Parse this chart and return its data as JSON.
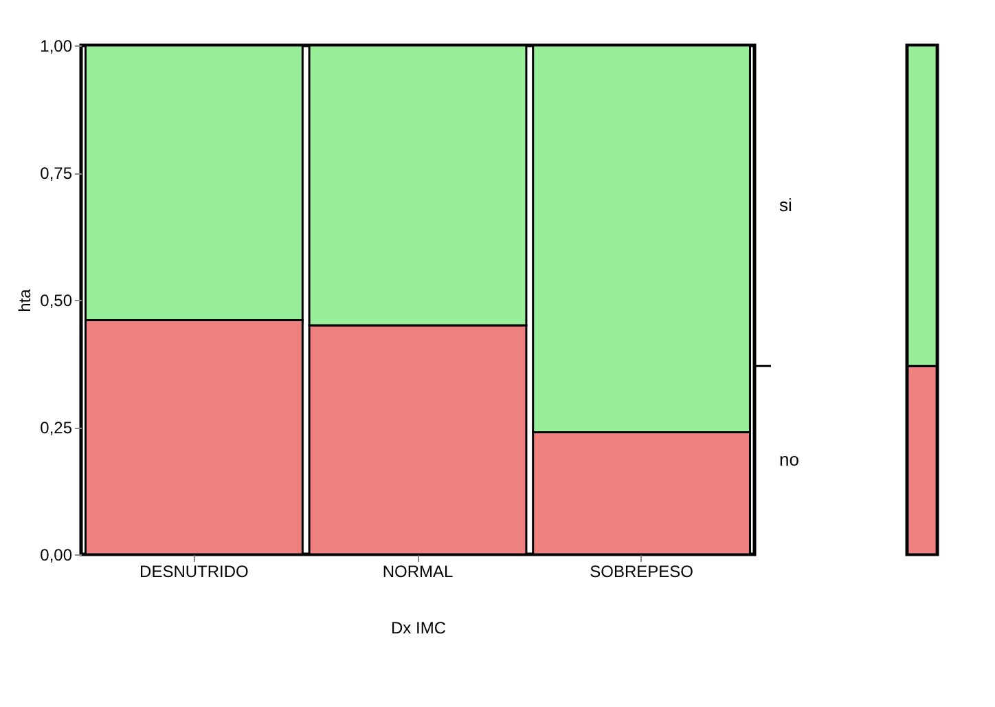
{
  "chart_data": [
    {
      "type": "bar",
      "stacked": true,
      "xlabel": "Dx IMC",
      "ylabel": "hta",
      "categories": [
        "DESNUTRIDO",
        "NORMAL",
        "SOBREPESO"
      ],
      "series": [
        {
          "name": "no",
          "color": "#ee8080",
          "values": [
            0.46,
            0.45,
            0.24
          ]
        },
        {
          "name": "si",
          "color": "#99ee99",
          "values": [
            0.54,
            0.55,
            0.76
          ]
        }
      ],
      "ylim": [
        0,
        1
      ],
      "yticks": [
        {
          "value": 0,
          "label": "0,00"
        },
        {
          "value": 0.25,
          "label": "0,25"
        },
        {
          "value": 0.5,
          "label": "0,50"
        },
        {
          "value": 0.75,
          "label": "0,75"
        },
        {
          "value": 1,
          "label": "1,00"
        }
      ],
      "grid": false,
      "legend": "right"
    },
    {
      "type": "bar",
      "stacked": true,
      "categories": [
        null
      ],
      "series": [
        {
          "color": "#ee8080",
          "values": [
            0.37
          ]
        },
        {
          "color": "#99ee99",
          "values": [
            0.63
          ]
        }
      ],
      "ylim": [
        0,
        1
      ],
      "tick_labels": false
    }
  ]
}
